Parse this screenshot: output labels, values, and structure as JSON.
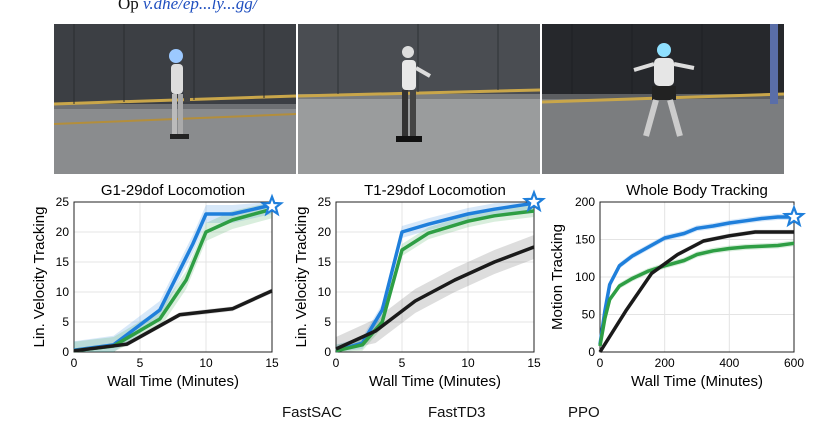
{
  "caption_top": {
    "prefix": "Op",
    "link_text": "v.dhe/ep...ly...gg/"
  },
  "photos": [
    {
      "alt": "G1 humanoid robot walking in a netted lab"
    },
    {
      "alt": "T1 humanoid robot walking in a netted lab"
    },
    {
      "alt": "Humanoid robot performing whole body tracking motion"
    }
  ],
  "legend": {
    "items": [
      "FastSAC",
      "FastTD3",
      "PPO"
    ]
  },
  "colors": {
    "fastsac": "#1f7fdb",
    "fasttd3": "#2e9e44",
    "ppo": "#1a1a1a",
    "star": "#1f7fdb"
  },
  "chart_data": [
    {
      "type": "line",
      "title": "G1-29dof Locomotion",
      "xlabel": "Wall Time (Minutes)",
      "ylabel": "Lin. Velocity Tracking",
      "xlim": [
        0,
        15
      ],
      "ylim": [
        0,
        25
      ],
      "xticks": [
        0,
        5,
        10,
        15
      ],
      "yticks": [
        0,
        5,
        10,
        15,
        20,
        25
      ],
      "series": [
        {
          "key": "fastsac",
          "x": [
            0,
            3,
            6.5,
            9,
            10,
            12,
            15
          ],
          "y": [
            0.3,
            1.2,
            7,
            18,
            23,
            23,
            24.5
          ],
          "band": 1.5
        },
        {
          "key": "fasttd3",
          "x": [
            0,
            3,
            6.5,
            8.5,
            10,
            12,
            15
          ],
          "y": [
            0.2,
            1,
            5.5,
            12,
            20,
            22,
            23.8
          ],
          "band": 1.5
        },
        {
          "key": "ppo",
          "x": [
            0,
            4,
            8,
            12,
            15
          ],
          "y": [
            0.2,
            1.3,
            6.2,
            7.2,
            10.2
          ],
          "band": 0.4
        }
      ],
      "star": {
        "x": 15,
        "y": 24.3
      }
    },
    {
      "type": "line",
      "title": "T1-29dof Locomotion",
      "xlabel": "Wall Time (Minutes)",
      "ylabel": "Lin. Velocity Tracking",
      "xlim": [
        0,
        15
      ],
      "ylim": [
        0,
        25
      ],
      "xticks": [
        0,
        5,
        10,
        15
      ],
      "yticks": [
        0,
        5,
        10,
        15,
        20,
        25
      ],
      "series": [
        {
          "key": "fastsac",
          "x": [
            0,
            2,
            3.5,
            5,
            7,
            10,
            12,
            15
          ],
          "y": [
            0.2,
            1.5,
            7,
            20,
            21.3,
            23,
            23.8,
            24.8
          ],
          "band": 1.0
        },
        {
          "key": "fasttd3",
          "x": [
            0,
            2,
            3.5,
            5,
            7,
            10,
            12,
            15
          ],
          "y": [
            0.2,
            1.2,
            5,
            17,
            19.8,
            21.8,
            22.7,
            23.5
          ],
          "band": 1.0
        },
        {
          "key": "ppo",
          "x": [
            0,
            3,
            6,
            9,
            12,
            15
          ],
          "y": [
            0.5,
            3.5,
            8.5,
            12,
            15,
            17.5
          ],
          "band": 2.0
        }
      ],
      "star": {
        "x": 15,
        "y": 25
      }
    },
    {
      "type": "line",
      "title": "Whole Body Tracking",
      "xlabel": "Wall Time (Minutes)",
      "ylabel": "Motion Tracking",
      "xlim": [
        0,
        600
      ],
      "ylim": [
        0,
        200
      ],
      "xticks": [
        0,
        200,
        400,
        600
      ],
      "yticks": [
        0,
        50,
        100,
        150,
        200
      ],
      "series": [
        {
          "key": "fastsac",
          "x": [
            0,
            15,
            30,
            60,
            100,
            150,
            200,
            260,
            300,
            350,
            400,
            450,
            500,
            550,
            600
          ],
          "y": [
            10,
            55,
            90,
            115,
            128,
            140,
            152,
            158,
            165,
            168,
            172,
            175,
            178,
            180,
            180
          ],
          "band": 4
        },
        {
          "key": "fasttd3",
          "x": [
            0,
            15,
            30,
            60,
            100,
            150,
            200,
            260,
            300,
            350,
            400,
            450,
            500,
            550,
            600
          ],
          "y": [
            8,
            45,
            70,
            88,
            98,
            108,
            115,
            122,
            130,
            135,
            138,
            140,
            141,
            142,
            145
          ],
          "band": 4
        },
        {
          "key": "ppo",
          "x": [
            0,
            80,
            160,
            240,
            320,
            400,
            480,
            540,
            600
          ],
          "y": [
            0,
            55,
            105,
            130,
            148,
            155,
            160,
            160,
            160
          ],
          "band": 3
        }
      ],
      "star": {
        "x": 600,
        "y": 180
      }
    }
  ]
}
